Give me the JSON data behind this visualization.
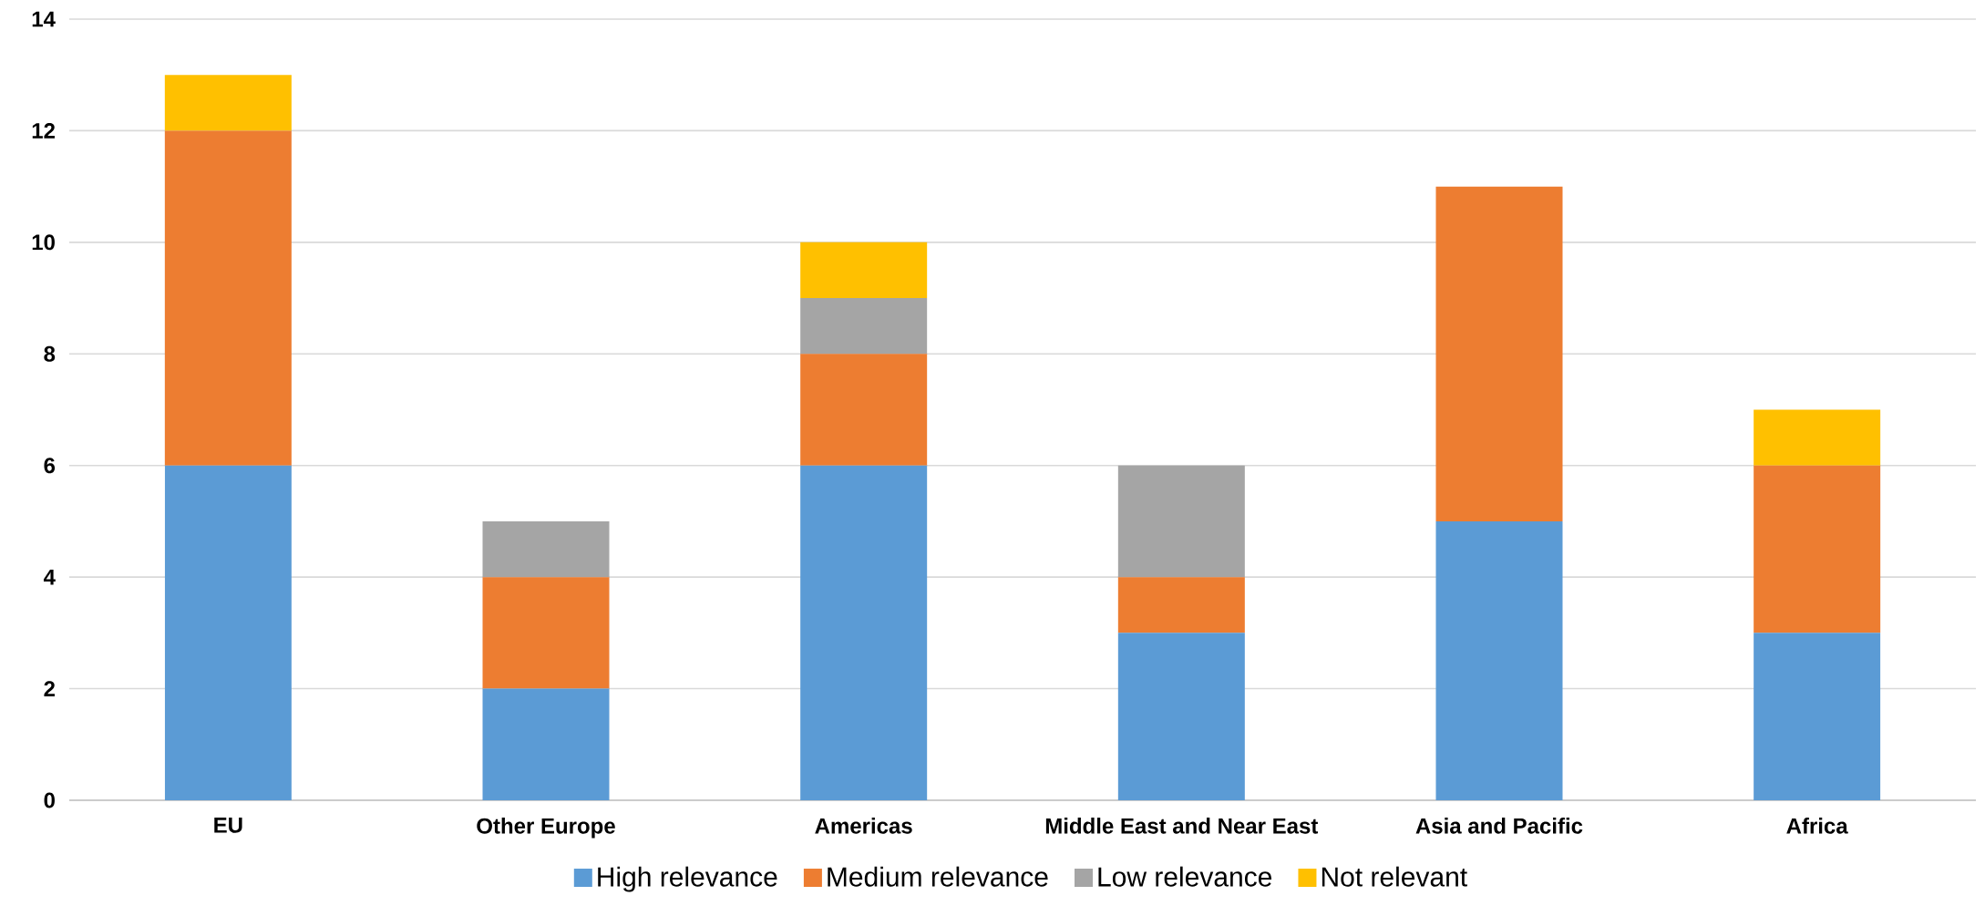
{
  "chart_data": {
    "type": "bar",
    "stacked": true,
    "categories": [
      "EU",
      "Other Europe",
      "Americas",
      "Middle East and Near East",
      "Asia and Pacific",
      "Africa"
    ],
    "series": [
      {
        "name": "High relevance",
        "color": "#5b9bd5",
        "values": [
          6,
          2,
          6,
          3,
          5,
          3
        ]
      },
      {
        "name": "Medium relevance",
        "color": "#ed7d31",
        "values": [
          6,
          2,
          2,
          1,
          6,
          3
        ]
      },
      {
        "name": "Low relevance",
        "color": "#a5a5a5",
        "values": [
          0,
          1,
          1,
          2,
          0,
          0
        ]
      },
      {
        "name": "Not relevant",
        "color": "#ffc000",
        "values": [
          1,
          0,
          1,
          0,
          0,
          1
        ]
      }
    ],
    "ylim": [
      0,
      14
    ],
    "yticks": [
      0,
      2,
      4,
      6,
      8,
      10,
      12,
      14
    ],
    "grid": "y",
    "legend": "bottom"
  }
}
